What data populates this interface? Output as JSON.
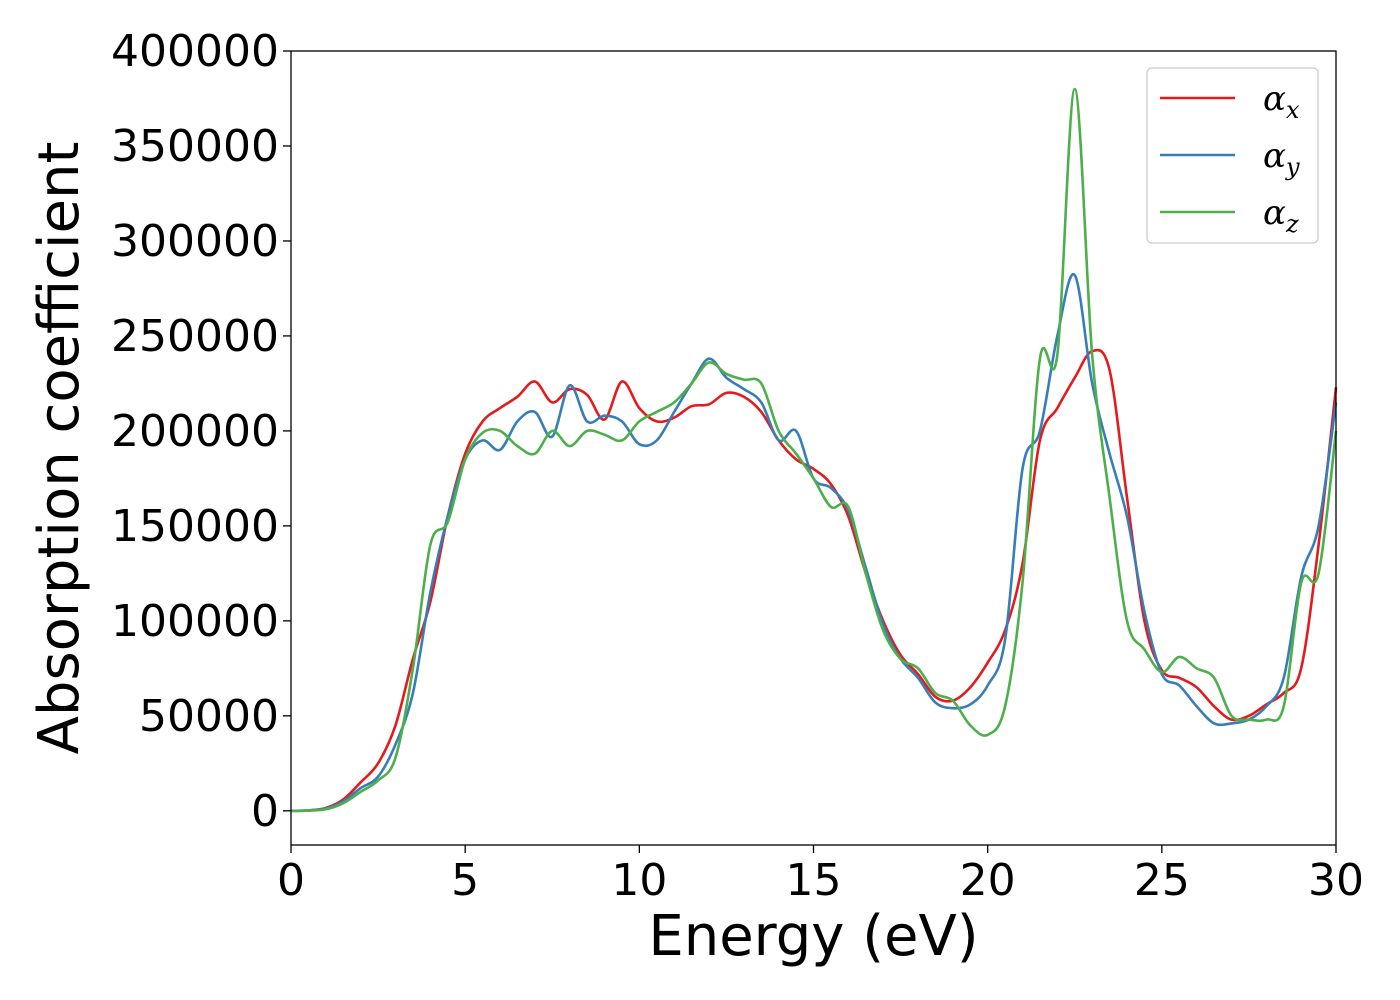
{
  "chart_data": {
    "type": "line",
    "title": "",
    "xlabel": "Energy (eV)",
    "ylabel": "Absorption coefficient",
    "xlim": [
      0,
      30
    ],
    "ylim": [
      -18000,
      400000
    ],
    "xticks": [
      0,
      5,
      10,
      15,
      20,
      25,
      30
    ],
    "yticks": [
      0,
      50000,
      100000,
      150000,
      200000,
      250000,
      300000,
      350000,
      400000
    ],
    "grid": false,
    "legend_placement": "top-right",
    "x": [
      0,
      0.5,
      1,
      1.5,
      2,
      2.5,
      3,
      3.5,
      4,
      4.5,
      5,
      5.5,
      6,
      6.5,
      7,
      7.5,
      8,
      8.5,
      9,
      9.5,
      10,
      10.5,
      11,
      11.5,
      12,
      12.5,
      13,
      13.5,
      14,
      14.5,
      15,
      15.5,
      16,
      16.5,
      17,
      17.5,
      18,
      18.5,
      19,
      19.5,
      20,
      20.5,
      21,
      21.5,
      22,
      22.5,
      23,
      23.5,
      24,
      24.5,
      25,
      25.5,
      26,
      26.5,
      27,
      27.5,
      28,
      28.5,
      29,
      29.5,
      30
    ],
    "series": [
      {
        "name": "α",
        "subscript": "x",
        "color": "#e41a1c",
        "values": [
          0,
          200,
          1500,
          6000,
          15000,
          25000,
          45000,
          80000,
          110000,
          155000,
          188000,
          205000,
          212000,
          218000,
          226000,
          215000,
          222000,
          219000,
          206000,
          226000,
          212000,
          205000,
          207000,
          213000,
          214000,
          220000,
          218000,
          210000,
          195000,
          185000,
          180000,
          172000,
          155000,
          125000,
          100000,
          82000,
          72000,
          60000,
          58000,
          65000,
          78000,
          95000,
          130000,
          195000,
          212000,
          228000,
          242000,
          232000,
          165000,
          100000,
          74000,
          70000,
          65000,
          55000,
          48000,
          50000,
          56000,
          62000,
          75000,
          140000,
          223000
        ]
      },
      {
        "name": "α",
        "subscript": "y",
        "color": "#377eb8",
        "values": [
          0,
          200,
          1200,
          5000,
          12000,
          18000,
          35000,
          62000,
          115000,
          155000,
          185000,
          195000,
          190000,
          205000,
          210000,
          197000,
          224000,
          205000,
          208000,
          205000,
          193000,
          195000,
          210000,
          225000,
          238000,
          228000,
          222000,
          215000,
          195000,
          200000,
          175000,
          170000,
          158000,
          128000,
          98000,
          80000,
          70000,
          57000,
          54000,
          56000,
          66000,
          90000,
          180000,
          200000,
          250000,
          282000,
          225000,
          188000,
          155000,
          105000,
          72000,
          66000,
          55000,
          46000,
          46000,
          48000,
          55000,
          70000,
          123000,
          150000,
          215000
        ]
      },
      {
        "name": "α",
        "subscript": "z",
        "color": "#4daf4a",
        "values": [
          0,
          150,
          800,
          4000,
          10000,
          16000,
          28000,
          75000,
          140000,
          152000,
          185000,
          199000,
          200000,
          192000,
          188000,
          200000,
          192000,
          200000,
          198000,
          195000,
          205000,
          210000,
          215000,
          225000,
          236000,
          230000,
          227000,
          225000,
          200000,
          188000,
          175000,
          160000,
          160000,
          125000,
          95000,
          80000,
          75000,
          62000,
          58000,
          45000,
          40000,
          55000,
          120000,
          238000,
          240000,
          380000,
          240000,
          165000,
          100000,
          85000,
          73000,
          81000,
          75000,
          70000,
          50000,
          48000,
          48000,
          55000,
          120000,
          125000,
          200000
        ]
      }
    ]
  }
}
